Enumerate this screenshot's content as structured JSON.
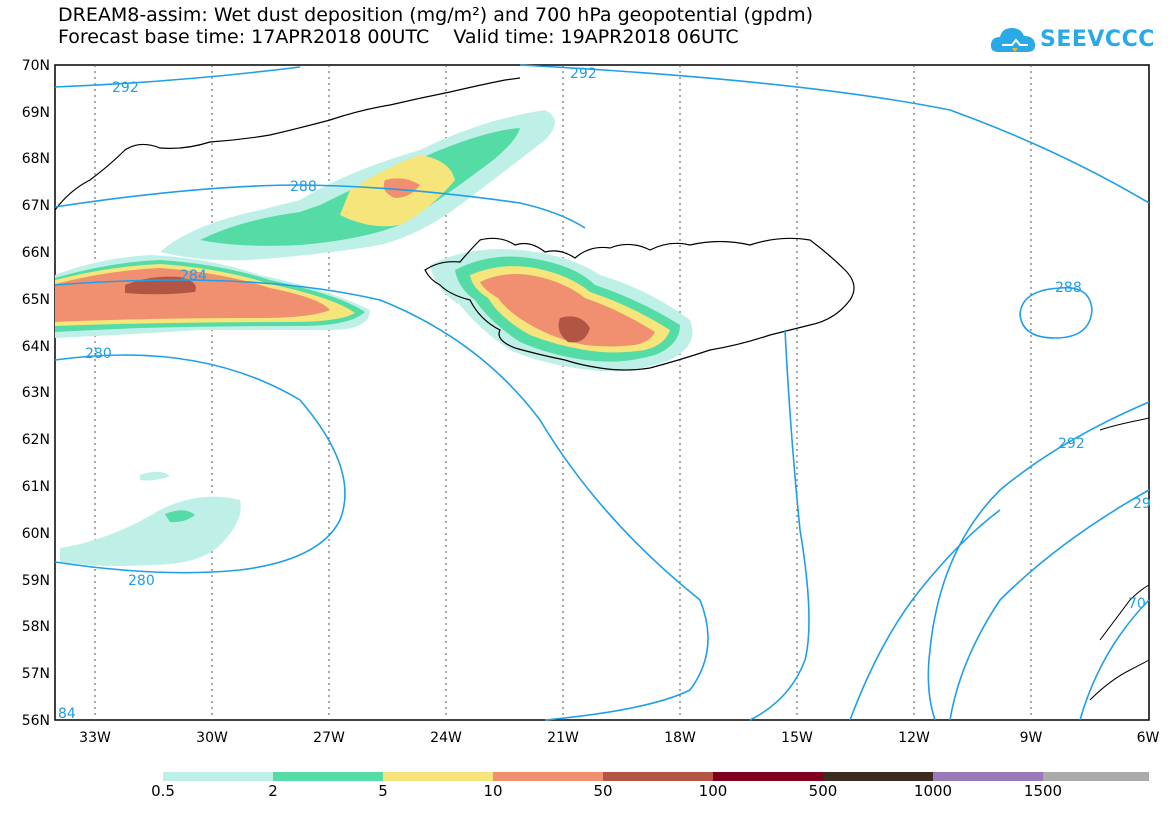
{
  "title_line1": "DREAM8-assim: Wet dust deposition (mg/m²) and 700 hPa geopotential (gpdm)",
  "title_line2": "Forecast base time: 17APR2018 00UTC    Valid time: 19APR2018 06UTC",
  "logo_text": "SEEVCCC",
  "lat_labels": [
    "70N",
    "69N",
    "68N",
    "67N",
    "66N",
    "65N",
    "64N",
    "63N",
    "62N",
    "61N",
    "60N",
    "59N",
    "58N",
    "57N",
    "56N"
  ],
  "lon_labels": [
    "33W",
    "30W",
    "27W",
    "24W",
    "21W",
    "18W",
    "15W",
    "12W",
    "9W",
    "6W"
  ],
  "contour_labels": [
    "292",
    "292",
    "288",
    "288",
    "284",
    "280",
    "280",
    "292",
    "29",
    "70",
    "84"
  ],
  "legend": {
    "colors": [
      "#bff0e8",
      "#55dba6",
      "#f5e57a",
      "#f09070",
      "#b35545",
      "#800020",
      "#3d2b1f",
      "#9a79b8",
      "#aaaaaa"
    ],
    "labels": [
      "0.5",
      "2",
      "5",
      "10",
      "50",
      "100",
      "500",
      "1000",
      "1500"
    ]
  }
}
